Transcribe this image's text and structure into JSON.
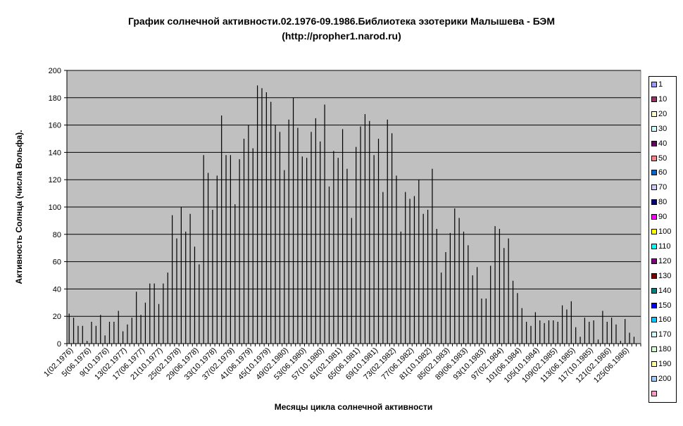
{
  "chart_data": {
    "type": "bar",
    "title": "График солнечной активности.02.1976-09.1986.Библиотека эзотерики Малышева - БЭМ",
    "subtitle": "(http://propher1.narod.ru)",
    "xlabel": "Месяцы цикла солнечной активности",
    "ylabel": "Активность Солнца (числа Вольфа).",
    "ylim": [
      0,
      200
    ],
    "yticks": [
      0,
      20,
      40,
      60,
      80,
      100,
      120,
      140,
      160,
      180,
      200
    ],
    "grid": true,
    "legend_position": "right",
    "plot_background": "#c0c0c0",
    "bar_color": "#000000",
    "x_tick_labels": [
      "1(02.1976)",
      "5(06.1976)",
      "9(10.1976)",
      "13(02.1977)",
      "17(06.1977)",
      "21(10.1977)",
      "25(02.1978)",
      "29(06.1978)",
      "33(10.1978)",
      "37(02.1979)",
      "41(06.1979)",
      "45(10.1979)",
      "49(02.1980)",
      "53(06.1980)",
      "57(10.1980)",
      "61(02.1981)",
      "65(06.1981)",
      "69(10.1981)",
      "73(02.1982)",
      "77(06.1982)",
      "81(10.1982)",
      "85(02.1983)",
      "89(06.1983)",
      "93(10.1983)",
      "97(02.1984)",
      "101(06.1984)",
      "105(10.1984)",
      "109(02.1985)",
      "113(06.1985)",
      "117(10.1985)",
      "121(02.1986)",
      "125(06.1986)"
    ],
    "x": [
      1,
      2,
      3,
      4,
      5,
      6,
      7,
      8,
      9,
      10,
      11,
      12,
      13,
      14,
      15,
      16,
      17,
      18,
      19,
      20,
      21,
      22,
      23,
      24,
      25,
      26,
      27,
      28,
      29,
      30,
      31,
      32,
      33,
      34,
      35,
      36,
      37,
      38,
      39,
      40,
      41,
      42,
      43,
      44,
      45,
      46,
      47,
      48,
      49,
      50,
      51,
      52,
      53,
      54,
      55,
      56,
      57,
      58,
      59,
      60,
      61,
      62,
      63,
      64,
      65,
      66,
      67,
      68,
      69,
      70,
      71,
      72,
      73,
      74,
      75,
      76,
      77,
      78,
      79,
      80,
      81,
      82,
      83,
      84,
      85,
      86,
      87,
      88,
      89,
      90,
      91,
      92,
      93,
      94,
      95,
      96,
      97,
      98,
      99,
      100,
      101,
      102,
      103,
      104,
      105,
      106,
      107,
      108,
      109,
      110,
      111,
      112,
      113,
      114,
      115,
      116,
      117,
      118,
      119,
      120,
      121,
      122,
      123,
      124,
      125,
      126,
      127,
      128
    ],
    "values": [
      22,
      19,
      13,
      13,
      2,
      16,
      13,
      21,
      6,
      16,
      16,
      24,
      9,
      14,
      19,
      38,
      21,
      30,
      44,
      44,
      29,
      44,
      52,
      94,
      77,
      100,
      82,
      95,
      71,
      58,
      138,
      125,
      98,
      123,
      167,
      138,
      138,
      102,
      135,
      150,
      160,
      143,
      189,
      187,
      184,
      177,
      160,
      155,
      127,
      164,
      180,
      158,
      137,
      136,
      155,
      165,
      148,
      175,
      115,
      141,
      136,
      157,
      128,
      92,
      144,
      159,
      168,
      163,
      138,
      150,
      111,
      164,
      154,
      123,
      82,
      111,
      106,
      108,
      120,
      95,
      98,
      128,
      84,
      52,
      67,
      81,
      99,
      92,
      82,
      72,
      50,
      56,
      33,
      33,
      57,
      86,
      84,
      70,
      77,
      46,
      37,
      26,
      16,
      13,
      23,
      17,
      15,
      17,
      17,
      16,
      28,
      25,
      31,
      12,
      5,
      19,
      16,
      17,
      3,
      24,
      16,
      19,
      14,
      2,
      18,
      8,
      5,
      0
    ]
  },
  "legend_items": [
    {
      "label": "1",
      "color": "#9999ff"
    },
    {
      "label": "10",
      "color": "#993366"
    },
    {
      "label": "20",
      "color": "#ffffcc"
    },
    {
      "label": "30",
      "color": "#ccffff"
    },
    {
      "label": "40",
      "color": "#660066"
    },
    {
      "label": "50",
      "color": "#ff8080"
    },
    {
      "label": "60",
      "color": "#0066cc"
    },
    {
      "label": "70",
      "color": "#ccccff"
    },
    {
      "label": "80",
      "color": "#000080"
    },
    {
      "label": "90",
      "color": "#ff00ff"
    },
    {
      "label": "100",
      "color": "#ffff00"
    },
    {
      "label": "110",
      "color": "#00ffff"
    },
    {
      "label": "120",
      "color": "#800080"
    },
    {
      "label": "130",
      "color": "#800000"
    },
    {
      "label": "140",
      "color": "#008080"
    },
    {
      "label": "150",
      "color": "#0000ff"
    },
    {
      "label": "160",
      "color": "#00ccff"
    },
    {
      "label": "170",
      "color": "#ccffff"
    },
    {
      "label": "180",
      "color": "#ccffcc"
    },
    {
      "label": "190",
      "color": "#ffff99"
    },
    {
      "label": "200",
      "color": "#99ccff"
    },
    {
      "label": "",
      "color": "#ff99cc"
    }
  ]
}
